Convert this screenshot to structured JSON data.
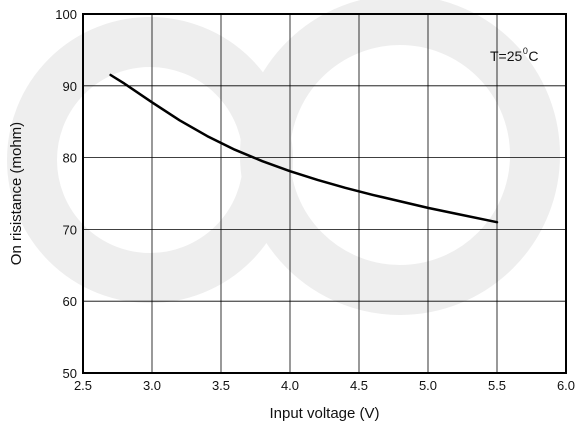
{
  "chart_data": {
    "type": "line",
    "title": "",
    "xlabel": "Input voltage (V)",
    "ylabel": "On risistance (mohm)",
    "xlim": [
      2.5,
      6.0
    ],
    "ylim": [
      50,
      100
    ],
    "xticks": [
      "2.5",
      "3.0",
      "3.5",
      "4.0",
      "4.5",
      "5.0",
      "5.5",
      "6.0"
    ],
    "yticks": [
      "50",
      "60",
      "70",
      "80",
      "90",
      "100"
    ],
    "grid": true,
    "annotation": {
      "text": "T=25",
      "superscript": "0",
      "suffix": "C"
    },
    "series": [
      {
        "color": "#000000",
        "x": [
          2.7,
          2.8,
          3.0,
          3.2,
          3.4,
          3.6,
          3.8,
          4.0,
          4.2,
          4.4,
          4.6,
          4.8,
          5.0,
          5.2,
          5.5
        ],
        "y": [
          91.5,
          90.3,
          87.7,
          85.2,
          83.0,
          81.1,
          79.5,
          78.1,
          76.9,
          75.8,
          74.8,
          73.9,
          73.0,
          72.2,
          71.0
        ]
      }
    ]
  },
  "colors": {
    "axis": "#000000",
    "grid": "#000000",
    "watermark": "#eeeeee"
  }
}
